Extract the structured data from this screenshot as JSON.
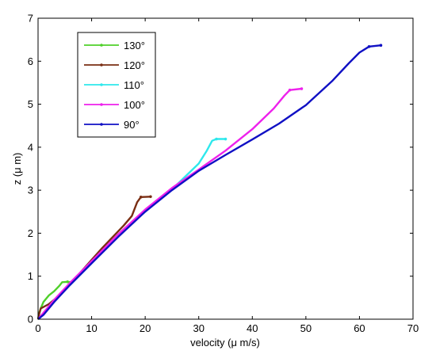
{
  "chart_data": {
    "type": "line",
    "xlabel": "velocity (μ m/s)",
    "ylabel": "z (μ m)",
    "xlim": [
      0,
      70
    ],
    "ylim": [
      0,
      7
    ],
    "xticks": [
      "0",
      "10",
      "20",
      "30",
      "40",
      "50",
      "60",
      "70"
    ],
    "yticks": [
      "0",
      "1",
      "2",
      "3",
      "4",
      "5",
      "6",
      "7"
    ],
    "grid": false,
    "legend_position": "top-left",
    "series": [
      {
        "name": "130°",
        "color": "#4fd02a",
        "points": [
          [
            0.0,
            0.0
          ],
          [
            0.2,
            0.15
          ],
          [
            0.5,
            0.25
          ],
          [
            1.0,
            0.4
          ],
          [
            2.0,
            0.55
          ],
          [
            3.0,
            0.65
          ],
          [
            4.0,
            0.78
          ],
          [
            4.5,
            0.86
          ],
          [
            5.5,
            0.87
          ],
          [
            6.2,
            0.86
          ]
        ],
        "tip": [
          6.2,
          0.86
        ]
      },
      {
        "name": "120°",
        "color": "#7a2e13",
        "points": [
          [
            0.0,
            0.0
          ],
          [
            0.2,
            0.12
          ],
          [
            0.5,
            0.25
          ],
          [
            2.0,
            0.35
          ],
          [
            4.0,
            0.55
          ],
          [
            6.0,
            0.82
          ],
          [
            8.0,
            1.1
          ],
          [
            10.0,
            1.38
          ],
          [
            12.0,
            1.66
          ],
          [
            14.0,
            1.92
          ],
          [
            16.0,
            2.18
          ],
          [
            17.5,
            2.4
          ],
          [
            18.5,
            2.72
          ],
          [
            19.2,
            2.84
          ],
          [
            21.0,
            2.85
          ]
        ],
        "tip": [
          21.0,
          2.85
        ]
      },
      {
        "name": "110°",
        "color": "#2ee8ec",
        "points": [
          [
            0.0,
            0.0
          ],
          [
            1.0,
            0.12
          ],
          [
            3.0,
            0.45
          ],
          [
            6.0,
            0.8
          ],
          [
            10.0,
            1.3
          ],
          [
            15.0,
            1.95
          ],
          [
            20.0,
            2.5
          ],
          [
            25.0,
            3.02
          ],
          [
            28.0,
            3.38
          ],
          [
            30.0,
            3.62
          ],
          [
            31.5,
            3.92
          ],
          [
            32.5,
            4.15
          ],
          [
            33.3,
            4.19
          ],
          [
            35.0,
            4.19
          ]
        ],
        "tip": [
          35.0,
          4.19
        ]
      },
      {
        "name": "100°",
        "color": "#ee21ec",
        "points": [
          [
            0.0,
            0.0
          ],
          [
            1.0,
            0.15
          ],
          [
            3.0,
            0.45
          ],
          [
            6.0,
            0.85
          ],
          [
            10.0,
            1.35
          ],
          [
            15.0,
            1.98
          ],
          [
            20.0,
            2.55
          ],
          [
            25.0,
            3.05
          ],
          [
            30.0,
            3.48
          ],
          [
            35.0,
            3.92
          ],
          [
            40.0,
            4.42
          ],
          [
            44.0,
            4.9
          ],
          [
            46.0,
            5.2
          ],
          [
            47.0,
            5.33
          ],
          [
            49.2,
            5.36
          ]
        ],
        "tip": [
          49.2,
          5.36
        ]
      },
      {
        "name": "90°",
        "color": "#1010c4",
        "points": [
          [
            0.0,
            0.0
          ],
          [
            1.0,
            0.1
          ],
          [
            3.0,
            0.4
          ],
          [
            6.0,
            0.8
          ],
          [
            10.0,
            1.3
          ],
          [
            15.0,
            1.92
          ],
          [
            20.0,
            2.5
          ],
          [
            25.0,
            3.0
          ],
          [
            30.0,
            3.45
          ],
          [
            35.0,
            3.82
          ],
          [
            40.0,
            4.18
          ],
          [
            45.0,
            4.55
          ],
          [
            50.0,
            4.98
          ],
          [
            55.0,
            5.55
          ],
          [
            58.0,
            5.95
          ],
          [
            60.0,
            6.2
          ],
          [
            61.8,
            6.34
          ],
          [
            64.0,
            6.37
          ]
        ],
        "tip": [
          64.0,
          6.37
        ]
      }
    ]
  }
}
